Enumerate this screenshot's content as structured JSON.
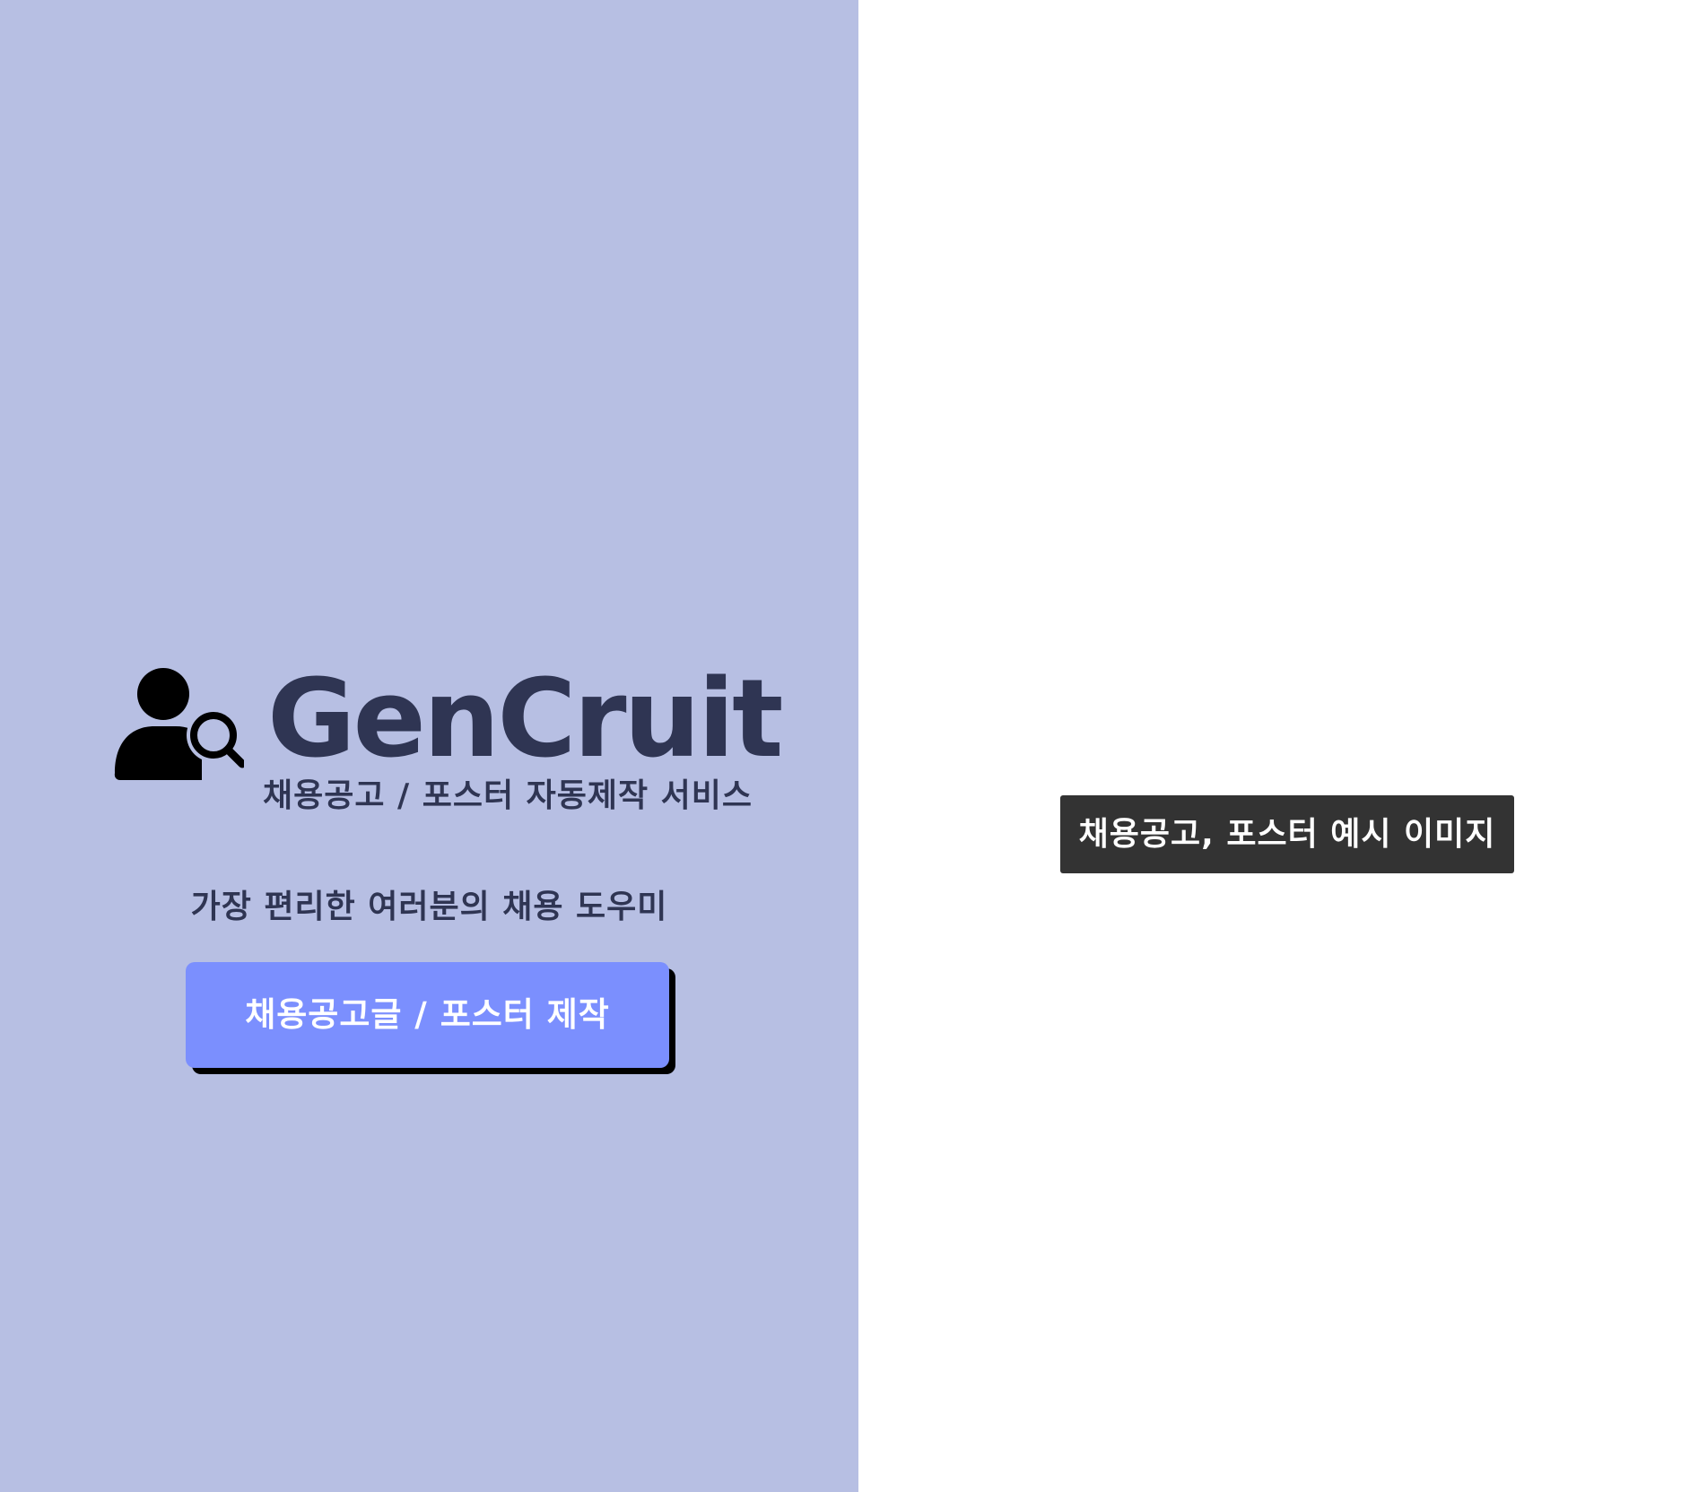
{
  "brand": {
    "name": "GenCruit",
    "subtitle": "채용공고 / 포스터 자동제작 서비스",
    "tagline": "가장 편리한 여러분의 채용 도우미",
    "logo_icon": "user-search-icon"
  },
  "actions": {
    "create_label": "채용공고글 / 포스터 제작"
  },
  "preview": {
    "label": "채용공고, 포스터 예시 이미지"
  },
  "colors": {
    "left_panel_bg": "#b7bfe3",
    "brand_text": "#2f3553",
    "button_bg": "#7b8ffe",
    "button_shadow": "#000000",
    "label_bg": "#333333"
  }
}
